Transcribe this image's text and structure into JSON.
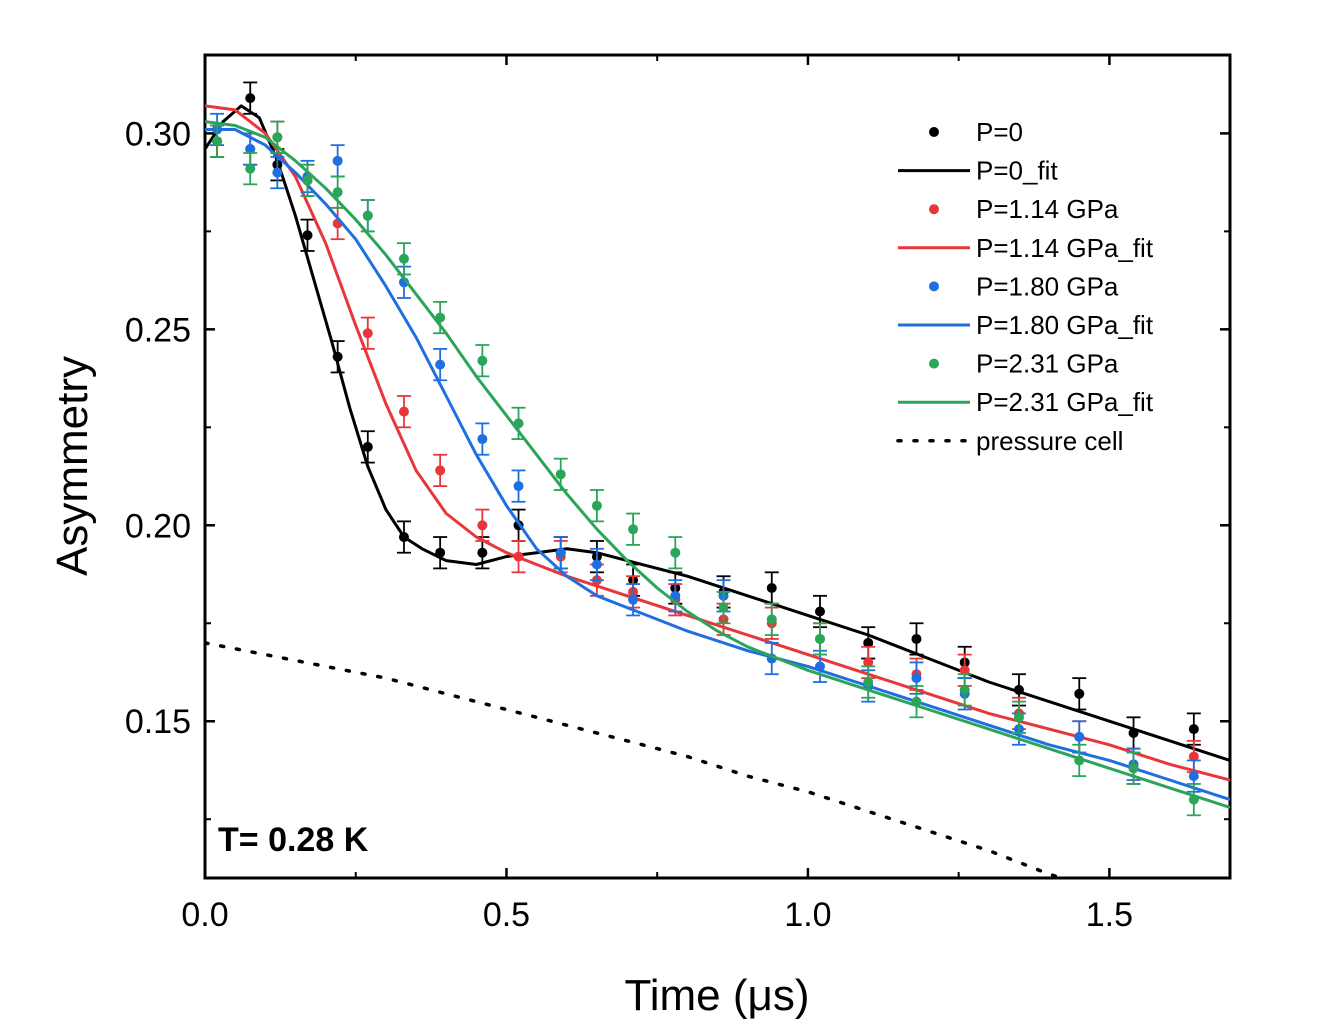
{
  "chart_data": {
    "type": "scatter",
    "xlabel": "Time (μs)",
    "ylabel": "Asymmetry",
    "xlim": [
      0.0,
      1.7
    ],
    "ylim": [
      0.11,
      0.32
    ],
    "xticks": [
      "0.0",
      "0.5",
      "1.0",
      "1.5"
    ],
    "xtick_values": [
      0.0,
      0.5,
      1.0,
      1.5
    ],
    "yticks": [
      "0.15",
      "0.20",
      "0.25",
      "0.30"
    ],
    "ytick_values": [
      0.15,
      0.2,
      0.25,
      0.3
    ],
    "annotation": "T= 0.28 K",
    "legend_position": "top-right",
    "colors": {
      "black": "#000000",
      "red": "#e8373a",
      "blue": "#1f6fe0",
      "green": "#2aa55a"
    },
    "series": [
      {
        "name": "P=0",
        "kind": "points",
        "color": "#000000",
        "x": [
          0.02,
          0.075,
          0.12,
          0.17,
          0.22,
          0.27,
          0.33,
          0.39,
          0.46,
          0.52,
          0.59,
          0.65,
          0.71,
          0.78,
          0.86,
          0.94,
          1.02,
          1.1,
          1.18,
          1.26,
          1.35,
          1.45,
          1.54,
          1.64
        ],
        "y": [
          0.298,
          0.309,
          0.292,
          0.274,
          0.243,
          0.22,
          0.197,
          0.193,
          0.193,
          0.2,
          0.193,
          0.192,
          0.186,
          0.184,
          0.183,
          0.184,
          0.178,
          0.17,
          0.171,
          0.165,
          0.158,
          0.157,
          0.147,
          0.148
        ],
        "err": [
          0.004,
          0.004,
          0.004,
          0.004,
          0.004,
          0.004,
          0.004,
          0.004,
          0.004,
          0.004,
          0.004,
          0.004,
          0.004,
          0.004,
          0.004,
          0.004,
          0.004,
          0.004,
          0.004,
          0.004,
          0.004,
          0.004,
          0.004,
          0.004
        ]
      },
      {
        "name": "P=0_fit",
        "kind": "line",
        "color": "#000000",
        "x": [
          0.0,
          0.03,
          0.06,
          0.09,
          0.12,
          0.15,
          0.18,
          0.21,
          0.24,
          0.27,
          0.3,
          0.33,
          0.36,
          0.4,
          0.45,
          0.5,
          0.55,
          0.6,
          0.65,
          0.7,
          0.8,
          0.9,
          1.0,
          1.1,
          1.2,
          1.3,
          1.4,
          1.5,
          1.6,
          1.7
        ],
        "y": [
          0.296,
          0.303,
          0.307,
          0.304,
          0.293,
          0.279,
          0.263,
          0.247,
          0.23,
          0.215,
          0.204,
          0.197,
          0.194,
          0.191,
          0.19,
          0.192,
          0.193,
          0.194,
          0.193,
          0.191,
          0.187,
          0.182,
          0.177,
          0.172,
          0.166,
          0.16,
          0.155,
          0.15,
          0.145,
          0.14
        ]
      },
      {
        "name": "P=1.14 GPa",
        "kind": "points",
        "color": "#e8373a",
        "x": [
          0.02,
          0.075,
          0.12,
          0.17,
          0.22,
          0.27,
          0.33,
          0.39,
          0.46,
          0.52,
          0.59,
          0.65,
          0.71,
          0.78,
          0.86,
          0.94,
          1.02,
          1.1,
          1.18,
          1.26,
          1.35,
          1.45,
          1.54,
          1.64
        ],
        "y": [
          0.298,
          0.296,
          0.299,
          0.288,
          0.277,
          0.249,
          0.229,
          0.214,
          0.2,
          0.192,
          0.192,
          0.186,
          0.183,
          0.181,
          0.176,
          0.175,
          0.171,
          0.165,
          0.162,
          0.163,
          0.152,
          0.146,
          0.138,
          0.141
        ],
        "err": [
          0.004,
          0.004,
          0.004,
          0.004,
          0.004,
          0.004,
          0.004,
          0.004,
          0.004,
          0.004,
          0.004,
          0.004,
          0.004,
          0.004,
          0.004,
          0.004,
          0.004,
          0.004,
          0.004,
          0.004,
          0.004,
          0.004,
          0.004,
          0.004
        ]
      },
      {
        "name": "P=1.14 GPa_fit",
        "kind": "line",
        "color": "#e8373a",
        "x": [
          0.0,
          0.05,
          0.1,
          0.15,
          0.2,
          0.25,
          0.3,
          0.35,
          0.4,
          0.45,
          0.5,
          0.55,
          0.6,
          0.7,
          0.8,
          0.9,
          1.0,
          1.1,
          1.2,
          1.3,
          1.4,
          1.5,
          1.6,
          1.7
        ],
        "y": [
          0.307,
          0.306,
          0.3,
          0.289,
          0.272,
          0.251,
          0.231,
          0.214,
          0.203,
          0.197,
          0.193,
          0.19,
          0.187,
          0.182,
          0.177,
          0.172,
          0.167,
          0.162,
          0.157,
          0.152,
          0.148,
          0.144,
          0.139,
          0.135
        ]
      },
      {
        "name": "P=1.80 GPa",
        "kind": "points",
        "color": "#1f6fe0",
        "x": [
          0.02,
          0.075,
          0.12,
          0.17,
          0.22,
          0.27,
          0.33,
          0.39,
          0.46,
          0.52,
          0.59,
          0.65,
          0.71,
          0.78,
          0.86,
          0.94,
          1.02,
          1.1,
          1.18,
          1.26,
          1.35,
          1.45,
          1.54,
          1.64
        ],
        "y": [
          0.301,
          0.296,
          0.29,
          0.289,
          0.293,
          0.279,
          0.262,
          0.241,
          0.222,
          0.21,
          0.193,
          0.19,
          0.181,
          0.182,
          0.182,
          0.166,
          0.164,
          0.159,
          0.161,
          0.157,
          0.148,
          0.146,
          0.139,
          0.136
        ],
        "err": [
          0.004,
          0.004,
          0.004,
          0.004,
          0.004,
          0.004,
          0.004,
          0.004,
          0.004,
          0.004,
          0.004,
          0.004,
          0.004,
          0.004,
          0.004,
          0.004,
          0.004,
          0.004,
          0.004,
          0.004,
          0.004,
          0.004,
          0.004,
          0.004
        ]
      },
      {
        "name": "P=1.80 GPa_fit",
        "kind": "line",
        "color": "#1f6fe0",
        "x": [
          0.0,
          0.05,
          0.1,
          0.15,
          0.2,
          0.25,
          0.3,
          0.35,
          0.4,
          0.45,
          0.5,
          0.55,
          0.6,
          0.65,
          0.7,
          0.8,
          0.9,
          1.0,
          1.1,
          1.2,
          1.3,
          1.4,
          1.5,
          1.6,
          1.7
        ],
        "y": [
          0.301,
          0.301,
          0.297,
          0.29,
          0.282,
          0.273,
          0.261,
          0.248,
          0.233,
          0.218,
          0.205,
          0.194,
          0.187,
          0.182,
          0.179,
          0.173,
          0.168,
          0.164,
          0.159,
          0.154,
          0.149,
          0.144,
          0.14,
          0.135,
          0.13
        ]
      },
      {
        "name": "P=2.31 GPa",
        "kind": "points",
        "color": "#2aa55a",
        "x": [
          0.02,
          0.075,
          0.12,
          0.17,
          0.22,
          0.27,
          0.33,
          0.39,
          0.46,
          0.52,
          0.59,
          0.65,
          0.71,
          0.78,
          0.86,
          0.94,
          1.02,
          1.1,
          1.18,
          1.26,
          1.35,
          1.45,
          1.54,
          1.64
        ],
        "y": [
          0.298,
          0.291,
          0.299,
          0.288,
          0.285,
          0.279,
          0.268,
          0.253,
          0.242,
          0.226,
          0.213,
          0.205,
          0.199,
          0.193,
          0.179,
          0.176,
          0.171,
          0.16,
          0.155,
          0.158,
          0.151,
          0.14,
          0.138,
          0.13
        ],
        "err": [
          0.004,
          0.004,
          0.004,
          0.004,
          0.004,
          0.004,
          0.004,
          0.004,
          0.004,
          0.004,
          0.004,
          0.004,
          0.004,
          0.004,
          0.004,
          0.004,
          0.004,
          0.004,
          0.004,
          0.004,
          0.004,
          0.004,
          0.004,
          0.004
        ]
      },
      {
        "name": "P=2.31 GPa_fit",
        "kind": "line",
        "color": "#2aa55a",
        "x": [
          0.0,
          0.05,
          0.1,
          0.15,
          0.2,
          0.25,
          0.3,
          0.35,
          0.4,
          0.45,
          0.5,
          0.55,
          0.6,
          0.65,
          0.7,
          0.75,
          0.8,
          0.85,
          0.9,
          1.0,
          1.1,
          1.2,
          1.3,
          1.4,
          1.5,
          1.6,
          1.7
        ],
        "y": [
          0.303,
          0.302,
          0.299,
          0.293,
          0.286,
          0.278,
          0.269,
          0.259,
          0.249,
          0.238,
          0.228,
          0.218,
          0.208,
          0.199,
          0.191,
          0.184,
          0.178,
          0.173,
          0.169,
          0.163,
          0.158,
          0.153,
          0.148,
          0.143,
          0.138,
          0.133,
          0.128
        ]
      },
      {
        "name": "pressure cell",
        "kind": "dotted",
        "color": "#000000",
        "x": [
          0.0,
          0.1,
          0.2,
          0.3,
          0.4,
          0.5,
          0.6,
          0.7,
          0.8,
          0.9,
          1.0,
          1.1,
          1.2,
          1.3,
          1.4,
          1.42
        ],
        "y": [
          0.17,
          0.167,
          0.164,
          0.161,
          0.157,
          0.153,
          0.149,
          0.145,
          0.141,
          0.136,
          0.132,
          0.127,
          0.122,
          0.117,
          0.111,
          0.11
        ]
      }
    ]
  }
}
